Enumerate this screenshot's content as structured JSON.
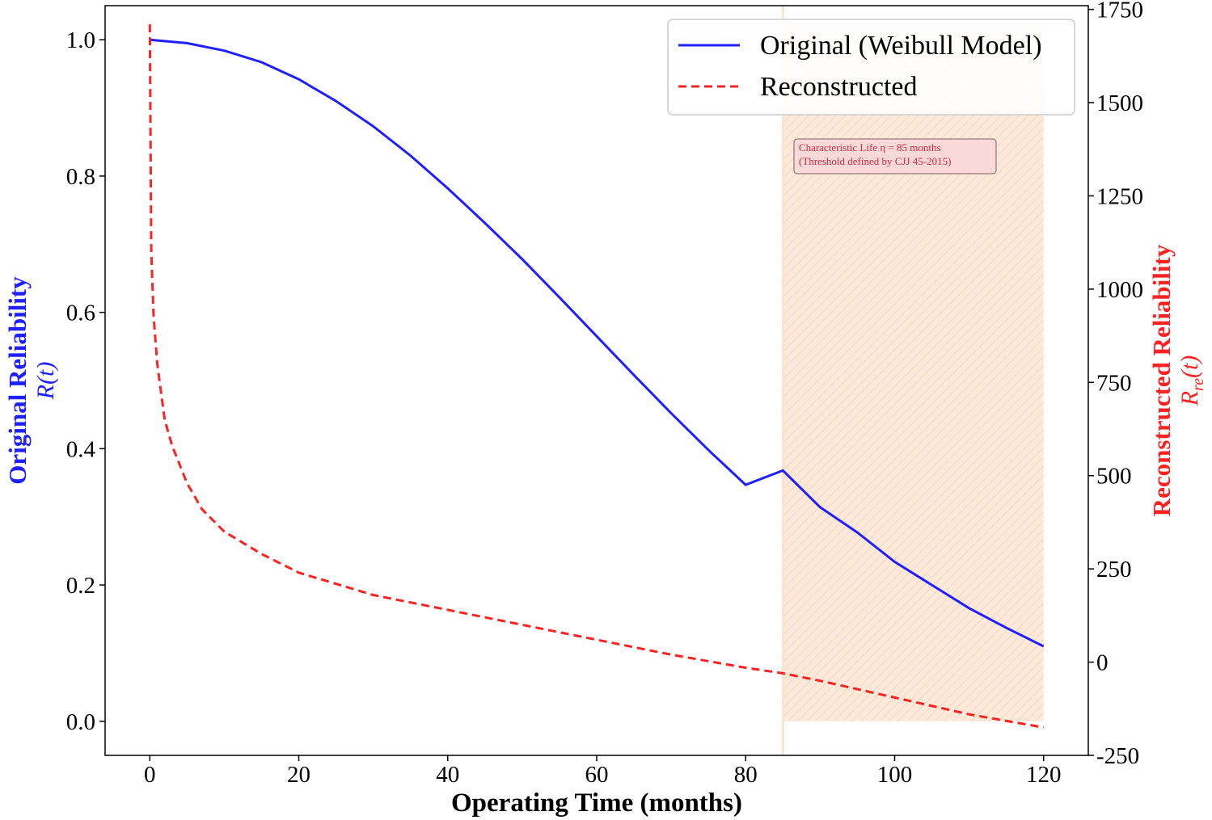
{
  "chart_data": {
    "type": "line",
    "x": [
      0,
      5,
      10,
      15,
      20,
      25,
      30,
      35,
      40,
      45,
      50,
      55,
      60,
      65,
      70,
      75,
      80,
      85,
      90,
      95,
      100,
      105,
      110,
      115,
      120
    ],
    "series": [
      {
        "name": "Original (Weibull Model)",
        "axis": "left",
        "color": "#1f1fff",
        "style": "solid",
        "values": [
          1.0,
          0.995,
          0.984,
          0.967,
          0.942,
          0.91,
          0.873,
          0.83,
          0.782,
          0.731,
          0.678,
          0.622,
          0.565,
          0.508,
          0.452,
          0.398,
          0.347,
          0.3679,
          0.314,
          0.277,
          0.234,
          0.2,
          0.166,
          0.137,
          0.11
        ]
      },
      {
        "name": "Reconstructed",
        "axis": "right",
        "color": "#ff2222",
        "style": "dashed",
        "x": [
          0,
          0.2,
          0.5,
          1,
          2,
          3,
          5,
          7,
          10,
          15,
          20,
          30,
          40,
          50,
          60,
          70,
          80,
          85,
          90,
          100,
          110,
          120
        ],
        "values": [
          1710,
          1100,
          930,
          800,
          650,
          580,
          480,
          410,
          350,
          290,
          240,
          180,
          140,
          100,
          60,
          20,
          -15,
          -30,
          -50,
          -95,
          -140,
          -175
        ]
      }
    ],
    "title": "",
    "xlabel": "Operating Time (months)",
    "ylabel_left": "Original Reliability",
    "ylabel_left_symbol": "R(t)",
    "ylabel_right": "Reconstructed Reliability",
    "ylabel_right_symbol": "R",
    "ylabel_right_subscript": "re",
    "ylabel_right_suffix": "(t)",
    "xlim": [
      -6,
      126
    ],
    "ylim_left": [
      -0.05,
      1.05
    ],
    "ylim_right": [
      -250,
      1760
    ],
    "xticks": [
      0,
      20,
      40,
      60,
      80,
      100,
      120
    ],
    "yticks_left": [
      "0.0",
      "0.2",
      "0.4",
      "0.6",
      "0.8",
      "1.0"
    ],
    "yticks_right": [
      -250,
      0,
      250,
      500,
      750,
      1000,
      1250,
      1500,
      1750
    ],
    "shaded_region": {
      "x_start": 85,
      "x_end": 120,
      "color": "#fde7d4"
    },
    "annotation": {
      "line1": "Characteristic Life η = 85 months",
      "line2": "(Threshold defined by CJJ 45-2015)"
    },
    "legend": {
      "location": "top-right",
      "entries": [
        "Original (Weibull Model)",
        "Reconstructed"
      ]
    },
    "grid": false
  }
}
